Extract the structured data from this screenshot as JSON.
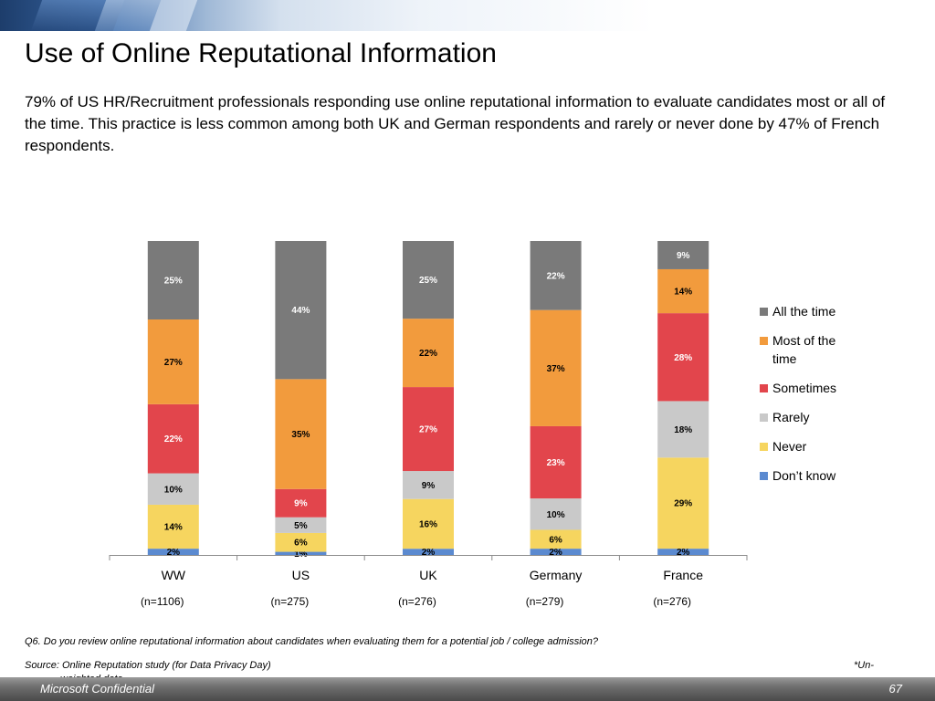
{
  "slide": {
    "title": "Use of Online Reputational Information",
    "subtitle": "79% of US HR/Recruitment professionals responding use online reputational information to evaluate candidates most or all of the time. This practice is less common among both UK and German respondents and rarely or never done by 47% of French respondents.",
    "question": "Q6. Do you review online reputational information about candidates when evaluating them for a potential job / college admission?",
    "source": "Source: Online Reputation study (for Data Privacy Day)",
    "footnote_part1": "*Un-",
    "footnote_part2": "weighted data",
    "footer_label": "Microsoft Confidential",
    "page_number": "67"
  },
  "chart_data": {
    "type": "bar",
    "stacked": true,
    "categories": [
      "WW",
      "US",
      "UK",
      "Germany",
      "France"
    ],
    "sample_sizes": [
      "(n=1106)",
      "(n=275)",
      "(n=276)",
      "(n=279)",
      "(n=276)"
    ],
    "series": [
      {
        "name": "Don't know",
        "values": [
          2,
          1,
          2,
          2,
          2
        ],
        "labels": [
          "2%",
          "1%",
          "2%",
          "2%",
          "2%"
        ],
        "color": "#5b8ad0",
        "label_color": "#000000"
      },
      {
        "name": "Never",
        "values": [
          14,
          6,
          16,
          6,
          29
        ],
        "labels": [
          "14%",
          "6%",
          "16%",
          "6%",
          "29%"
        ],
        "color": "#f6d55f",
        "label_color": "#000000"
      },
      {
        "name": "Rarely",
        "values": [
          10,
          5,
          9,
          10,
          18
        ],
        "labels": [
          "10%",
          "5%",
          "9%",
          "10%",
          "18%"
        ],
        "color": "#c9c9c9",
        "label_color": "#000000"
      },
      {
        "name": "Sometimes",
        "values": [
          22,
          9,
          27,
          23,
          28
        ],
        "labels": [
          "22%",
          "9%",
          "27%",
          "23%",
          "28%"
        ],
        "color": "#e2454c",
        "label_color": "#ffffff"
      },
      {
        "name": "Most of the time",
        "values": [
          27,
          35,
          22,
          37,
          14
        ],
        "labels": [
          "27%",
          "35%",
          "22%",
          "37%",
          "14%"
        ],
        "color": "#f29b3d",
        "label_color": "#000000"
      },
      {
        "name": "All the time",
        "values": [
          25,
          44,
          25,
          22,
          9
        ],
        "labels": [
          "25%",
          "44%",
          "25%",
          "22%",
          "9%"
        ],
        "color": "#7a7a7a",
        "label_color": "#ffffff"
      }
    ],
    "legend": {
      "position": "right",
      "entries": [
        {
          "lines": [
            "All the time"
          ],
          "color": "#7a7a7a"
        },
        {
          "lines": [
            "Most of the",
            "time"
          ],
          "color": "#f29b3d"
        },
        {
          "lines": [
            "Sometimes"
          ],
          "color": "#e2454c"
        },
        {
          "lines": [
            "Rarely"
          ],
          "color": "#c9c9c9"
        },
        {
          "lines": [
            "Never"
          ],
          "color": "#f6d55f"
        },
        {
          "lines": [
            "Don’t know"
          ],
          "color": "#5b8ad0"
        }
      ]
    },
    "ylim": [
      0,
      100
    ],
    "grid": false
  }
}
